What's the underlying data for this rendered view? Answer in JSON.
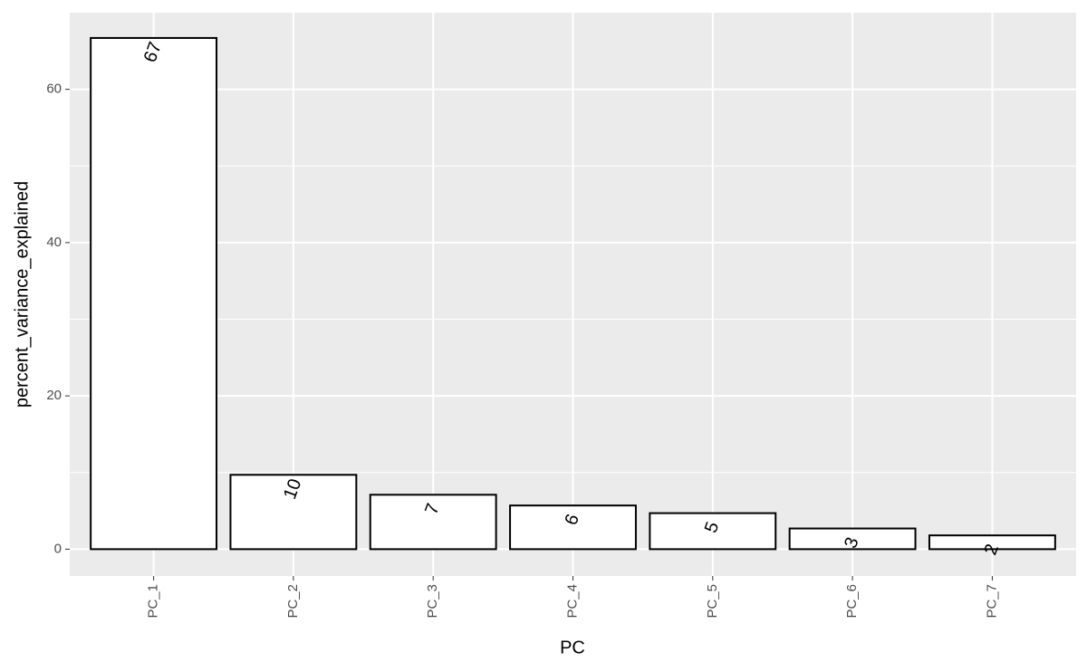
{
  "chart_data": {
    "type": "bar",
    "x_label": "PC",
    "y_label": "percent_variance_explained",
    "categories": [
      "PC_1",
      "PC_2",
      "PC_3",
      "PC_4",
      "PC_5",
      "PC_6",
      "PC_7"
    ],
    "values": [
      66.7,
      9.7,
      7.1,
      5.7,
      4.7,
      2.7,
      1.8
    ],
    "value_labels": [
      "67",
      "10",
      "7",
      "6",
      "5",
      "3",
      "2"
    ],
    "color": "#ffffff",
    "edge_color": "#000000",
    "ylim": [
      -3.5,
      70
    ],
    "yticks": [
      0,
      20,
      40,
      60
    ],
    "minor_yticks": [
      10,
      30,
      50
    ],
    "grid": true
  }
}
